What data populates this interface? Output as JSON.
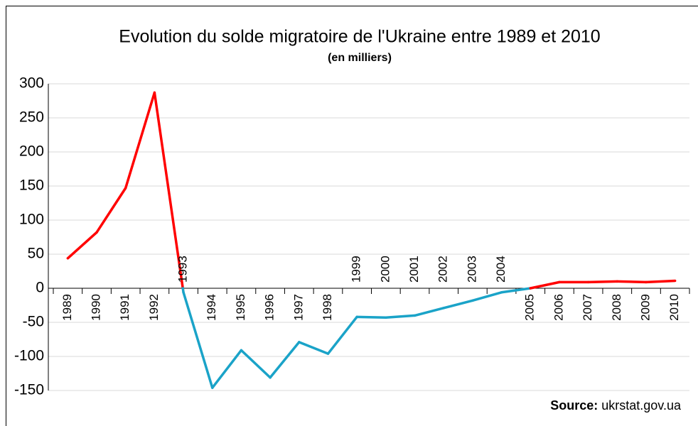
{
  "chart_data": {
    "type": "line",
    "title": "Evolution du solde migratoire de l'Ukraine entre 1989 et 2010",
    "subtitle": "(en milliers)",
    "source_label": "Source:",
    "source": "ukrstat.gov.ua",
    "categories": [
      "1989",
      "1990",
      "1991",
      "1992",
      "1993",
      "1994",
      "1995",
      "1996",
      "1997",
      "1998",
      "1999",
      "2000",
      "2001",
      "2002",
      "2003",
      "2004",
      "2005",
      "2006",
      "2007",
      "2008",
      "2009",
      "2010"
    ],
    "values": [
      44,
      82,
      147,
      287,
      -6,
      -146,
      -91,
      -131,
      -79,
      -96,
      -42,
      -43,
      -40,
      -29,
      -18,
      -6,
      0,
      9,
      9,
      10,
      9,
      11
    ],
    "colors": {
      "positive": "#ff0000",
      "negative": "#1aa3c8"
    },
    "ylim": [
      -150,
      300
    ],
    "yticks": [
      -150,
      -100,
      -50,
      0,
      50,
      100,
      150,
      200,
      250,
      300
    ],
    "grid": true
  }
}
